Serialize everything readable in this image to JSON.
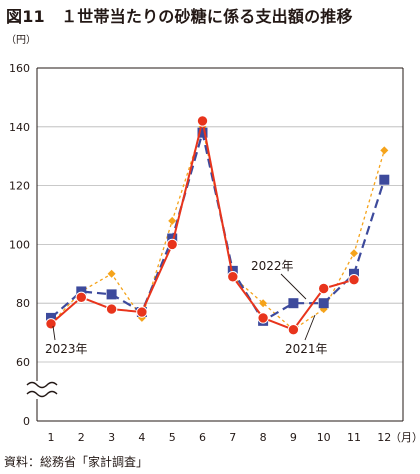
{
  "title": "図11　１世帯当たりの砂糖に係る支出額の推移",
  "source": "資料：総務省「家計調査」",
  "chart_data": {
    "type": "line",
    "x": [
      1,
      2,
      3,
      4,
      5,
      6,
      7,
      8,
      9,
      10,
      11,
      12
    ],
    "x_ticks": [
      "1",
      "2",
      "3",
      "4",
      "5",
      "6",
      "7",
      "8",
      "9",
      "10",
      "11",
      "12"
    ],
    "xlabel": "（月）",
    "ylabel": "（円）",
    "y_ticks": [
      "0",
      "60",
      "80",
      "100",
      "120",
      "140",
      "160"
    ],
    "y_broken": true,
    "ylim": [
      60,
      160
    ],
    "grid": "horizontal",
    "series": [
      {
        "name": "2021年",
        "color": "#f5a31a",
        "marker": "diamond",
        "line": "dotted",
        "values": [
          73,
          84,
          90,
          75,
          108,
          140,
          89,
          80,
          71,
          78,
          97,
          132
        ]
      },
      {
        "name": "2022年",
        "color": "#3d4a9c",
        "marker": "square",
        "line": "dashed",
        "values": [
          75,
          84,
          83,
          77,
          102,
          138,
          91,
          74,
          80,
          80,
          90,
          122
        ]
      },
      {
        "name": "2023年",
        "color": "#e8341c",
        "marker": "circle",
        "line": "solid",
        "values": [
          73,
          82,
          78,
          77,
          100,
          142,
          89,
          75,
          71,
          85,
          88,
          null
        ]
      }
    ],
    "annotations": [
      {
        "text": "2022年",
        "series": "2022年"
      },
      {
        "text": "2021年",
        "series": "2021年"
      },
      {
        "text": "2023年",
        "series": "2023年"
      }
    ]
  }
}
